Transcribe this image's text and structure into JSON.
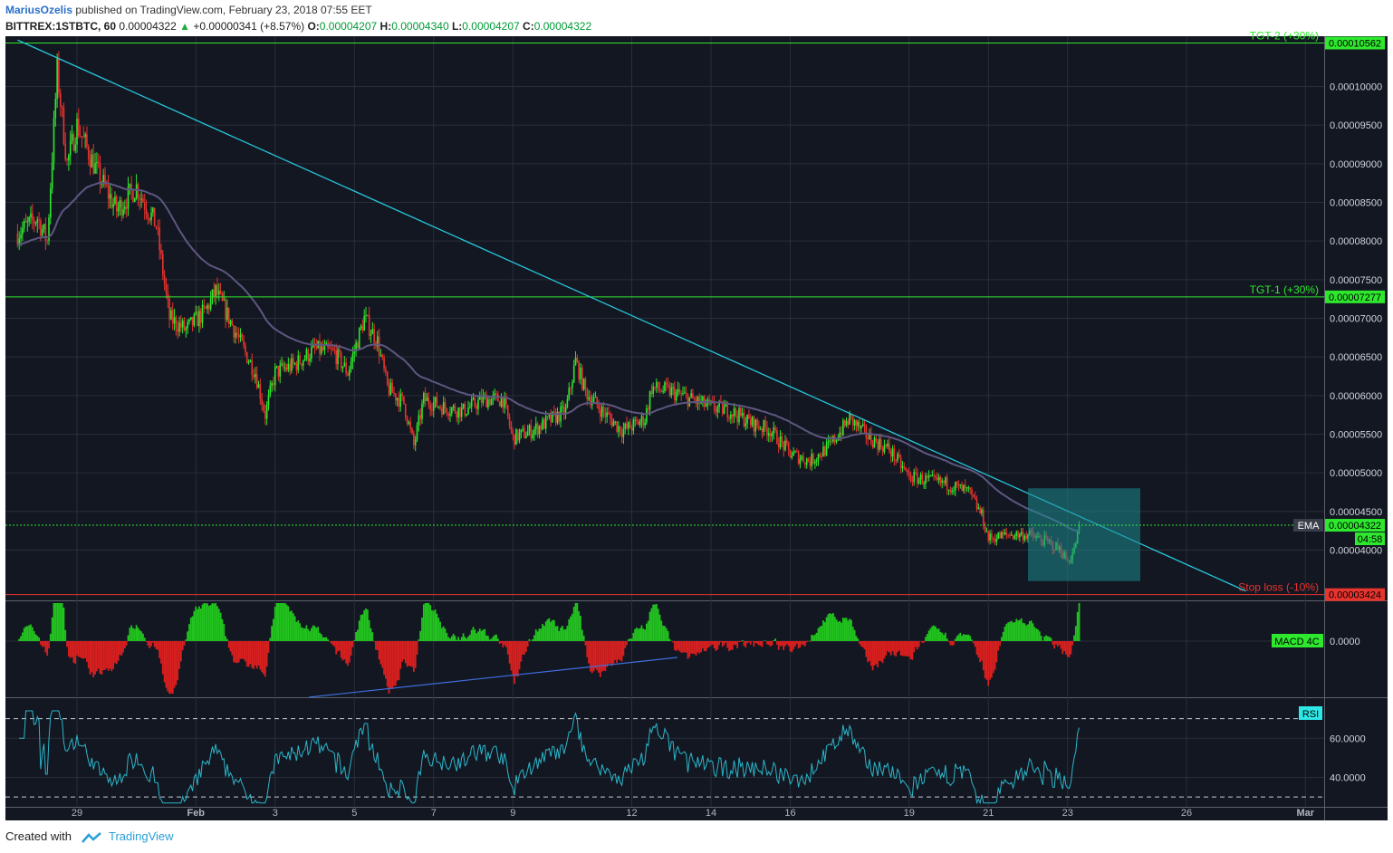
{
  "header": {
    "author": "MariusOzelis",
    "published": "published on TradingView.com, February 23, 2018 07:55 EET",
    "symbol": "BITTREX:1STBTC, 60",
    "last": "0.00004322",
    "change": "+0.00000341 (+8.57%)",
    "o_label": "O:",
    "o_value": "0.00004207",
    "h_label": "H:",
    "h_value": "0.00004340",
    "l_label": "L:",
    "l_value": "0.00004207",
    "c_label": "C:",
    "c_value": "0.00004322"
  },
  "footer": {
    "created_with": "Created with",
    "brand": "TradingView"
  },
  "colors": {
    "background": "#131722",
    "grid": "#2a2e39",
    "up": "#2ee82e",
    "down": "#e8342e",
    "ema": "#5e5680",
    "trendline": "#26c6da",
    "box": "#1e8a8f",
    "target": "#2ee82e",
    "stop": "#e8342e",
    "rsi": "#2bb6c9",
    "macd_line": "#3d6edb"
  },
  "chart_data": [
    {
      "type": "candlestick",
      "panel": "price",
      "interval": "60",
      "x_tick_labels": [
        "29",
        "Feb",
        "3",
        "5",
        "7",
        "9",
        "12",
        "14",
        "16",
        "19",
        "21",
        "23",
        "26",
        "Mar"
      ],
      "x_tick_days": [
        "2018-01-29",
        "2018-02-01",
        "2018-02-03",
        "2018-02-05",
        "2018-02-07",
        "2018-02-09",
        "2018-02-12",
        "2018-02-14",
        "2018-02-16",
        "2018-02-19",
        "2018-02-21",
        "2018-02-23",
        "2018-02-26",
        "2018-03-01"
      ],
      "y_tick_labels": [
        "0.00010000",
        "0.00009500",
        "0.00009000",
        "0.00008500",
        "0.00008000",
        "0.00007500",
        "0.00007000",
        "0.00006500",
        "0.00006000",
        "0.00005500",
        "0.00005000",
        "0.00004500",
        "0.00004000"
      ],
      "ylim": [
        3.35e-05,
        0.0001065
      ],
      "close_path": [
        [
          "2018-01-27 12:00",
          8.1e-05
        ],
        [
          "2018-01-28 00:00",
          8.3e-05
        ],
        [
          "2018-01-28 06:00",
          8e-05
        ],
        [
          "2018-01-28 12:00",
          0.000102
        ],
        [
          "2018-01-28 18:00",
          9e-05
        ],
        [
          "2018-01-29 00:00",
          9.5e-05
        ],
        [
          "2018-01-29 12:00",
          8.9e-05
        ],
        [
          "2018-01-30 00:00",
          8.4e-05
        ],
        [
          "2018-01-30 12:00",
          8.7e-05
        ],
        [
          "2018-01-31 00:00",
          8.2e-05
        ],
        [
          "2018-01-31 08:00",
          7e-05
        ],
        [
          "2018-01-31 18:00",
          6.85e-05
        ],
        [
          "2018-02-01 06:00",
          7.1e-05
        ],
        [
          "2018-02-01 12:00",
          7.35e-05
        ],
        [
          "2018-02-01 20:00",
          7e-05
        ],
        [
          "2018-02-02 06:00",
          6.55e-05
        ],
        [
          "2018-02-02 12:00",
          6.3e-05
        ],
        [
          "2018-02-02 18:00",
          5.75e-05
        ],
        [
          "2018-02-03 00:00",
          6.3e-05
        ],
        [
          "2018-02-03 12:00",
          6.4e-05
        ],
        [
          "2018-02-04 00:00",
          6.6e-05
        ],
        [
          "2018-02-04 12:00",
          6.55e-05
        ],
        [
          "2018-02-04 20:00",
          6.3e-05
        ],
        [
          "2018-02-05 06:00",
          7e-05
        ],
        [
          "2018-02-05 14:00",
          6.7e-05
        ],
        [
          "2018-02-05 20:00",
          6.1e-05
        ],
        [
          "2018-02-06 06:00",
          5.9e-05
        ],
        [
          "2018-02-06 12:00",
          5.35e-05
        ],
        [
          "2018-02-06 18:00",
          5.95e-05
        ],
        [
          "2018-02-07 06:00",
          5.85e-05
        ],
        [
          "2018-02-07 18:00",
          5.8e-05
        ],
        [
          "2018-02-08 06:00",
          5.95e-05
        ],
        [
          "2018-02-08 18:00",
          5.95e-05
        ],
        [
          "2018-02-09 00:00",
          5.45e-05
        ],
        [
          "2018-02-09 12:00",
          5.55e-05
        ],
        [
          "2018-02-10 00:00",
          5.7e-05
        ],
        [
          "2018-02-10 08:00",
          5.8e-05
        ],
        [
          "2018-02-10 14:00",
          6.45e-05
        ],
        [
          "2018-02-10 20:00",
          6.05e-05
        ],
        [
          "2018-02-11 06:00",
          5.8e-05
        ],
        [
          "2018-02-11 18:00",
          5.55e-05
        ],
        [
          "2018-02-12 00:00",
          5.6e-05
        ],
        [
          "2018-02-12 08:00",
          5.7e-05
        ],
        [
          "2018-02-12 12:00",
          6.1e-05
        ],
        [
          "2018-02-13 00:00",
          6.05e-05
        ],
        [
          "2018-02-13 12:00",
          5.95e-05
        ],
        [
          "2018-02-14 00:00",
          5.85e-05
        ],
        [
          "2018-02-14 12:00",
          5.8e-05
        ],
        [
          "2018-02-15 00:00",
          5.65e-05
        ],
        [
          "2018-02-15 12:00",
          5.55e-05
        ],
        [
          "2018-02-16 00:00",
          5.25e-05
        ],
        [
          "2018-02-16 12:00",
          5.15e-05
        ],
        [
          "2018-02-17 00:00",
          5.35e-05
        ],
        [
          "2018-02-17 12:00",
          5.7e-05
        ],
        [
          "2018-02-18 00:00",
          5.45e-05
        ],
        [
          "2018-02-18 12:00",
          5.3e-05
        ],
        [
          "2018-02-19 00:00",
          4.95e-05
        ],
        [
          "2018-02-19 12:00",
          4.9e-05
        ],
        [
          "2018-02-20 00:00",
          4.85e-05
        ],
        [
          "2018-02-20 12:00",
          4.75e-05
        ],
        [
          "2018-02-20 20:00",
          4.45e-05
        ],
        [
          "2018-02-21 00:00",
          4.15e-05
        ],
        [
          "2018-02-21 12:00",
          4.2e-05
        ],
        [
          "2018-02-22 00:00",
          4.2e-05
        ],
        [
          "2018-02-22 12:00",
          4.1e-05
        ],
        [
          "2018-02-22 20:00",
          4e-05
        ],
        [
          "2018-02-23 00:00",
          3.85e-05
        ],
        [
          "2018-02-23 04:00",
          4e-05
        ],
        [
          "2018-02-23 07:00",
          4.322e-05
        ]
      ],
      "ema_label": "EMA",
      "current_price_label": "0.00004322",
      "countdown": "04:58",
      "levels": [
        {
          "label": "TGT-2 (+30%)",
          "price_label": "0.00010562",
          "value": 0.00010562,
          "color": "#2ee82e"
        },
        {
          "label": "TGT-1 (+30%)",
          "price_label": "0.00007277",
          "value": 7.277e-05,
          "color": "#2ee82e"
        },
        {
          "label": "Stop loss (-10%)",
          "price_label": "0.00003424",
          "value": 3.424e-05,
          "color": "#e8342e"
        }
      ],
      "trendline": [
        [
          "2018-01-27 12:00",
          0.000106
        ],
        [
          "2018-02-27 12:00",
          3.47e-05
        ]
      ],
      "box": {
        "x": [
          "2018-02-22 00:00",
          "2018-02-24 20:00"
        ],
        "y": [
          3.6e-05,
          4.8e-05
        ]
      }
    },
    {
      "type": "bar",
      "panel": "macd",
      "label": "MACD 4C",
      "y_tick_labels": [
        "0.0000"
      ]
    },
    {
      "type": "line",
      "panel": "rsi",
      "label": "RSI",
      "y_tick_labels": [
        "60.0000",
        "40.0000"
      ],
      "ylim": [
        25,
        80
      ]
    }
  ]
}
